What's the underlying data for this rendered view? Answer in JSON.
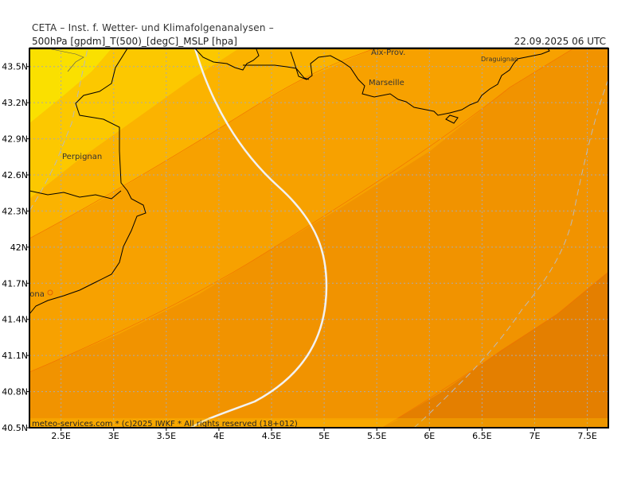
{
  "header": {
    "institute": "CETA – Inst. f. Wetter- und Klimafolgenanalysen –",
    "parameters": "500hPa [gpdm]_T(500)_[degC]_MSLP [hpa]",
    "valid_time": "22.09.2025 06 UTC"
  },
  "footer": {
    "credit": "meteo-services.com * (c)2025 IWKF * All rights reserved (18+012)"
  },
  "axes": {
    "lat_labels": [
      "43.5N",
      "43.2N",
      "42.9N",
      "42.6N",
      "42.3N",
      "42N",
      "41.7N",
      "41.4N",
      "41.1N",
      "40.8N",
      "40.5N"
    ],
    "lon_labels": [
      "2.5E",
      "3E",
      "3.5E",
      "4E",
      "4.5E",
      "5E",
      "5.5E",
      "6E",
      "6.5E",
      "7E",
      "7.5E"
    ],
    "lat_values": [
      43.5,
      43.2,
      42.9,
      42.6,
      42.3,
      42.0,
      41.7,
      41.4,
      41.1,
      40.8,
      40.5
    ],
    "lon_values": [
      2.5,
      3.0,
      3.5,
      4.0,
      4.5,
      5.0,
      5.5,
      6.0,
      6.5,
      7.0,
      7.5
    ],
    "lon_range": [
      2.2,
      7.7
    ],
    "lat_range": [
      40.5,
      43.65
    ]
  },
  "cities": [
    {
      "name": "Aix-Prov.",
      "lon": 5.45,
      "lat": 43.63
    },
    {
      "name": "Draguignan",
      "lon": 6.45,
      "lat": 43.55
    },
    {
      "name": "Marseille",
      "lon": 5.38,
      "lat": 43.3
    },
    {
      "name": "Perpignan",
      "lon": 2.89,
      "lat": 42.7
    },
    {
      "name": "Barcelona",
      "lon": 2.17,
      "lat": 41.39
    }
  ],
  "colors": {
    "band_1": "#fae000",
    "band_2": "#fcc800",
    "band_3": "#fbb300",
    "band_4": "#f7a100",
    "band_5": "#f19300",
    "band_6": "#e47f00",
    "coastline": "#000000",
    "isobar": "#f0f0f0",
    "grid": "#aaaaaa"
  }
}
